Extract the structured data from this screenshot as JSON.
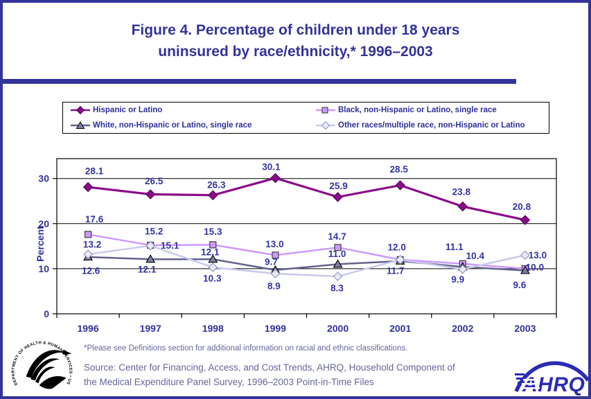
{
  "slide": {
    "title_line1": "Figure 4. Percentage of children under 18 years",
    "title_line2": "uninsured by race/ethnicity,* 1996–2003",
    "accent_color": "#333399"
  },
  "chart_data": {
    "type": "line",
    "title": "Percentage of children under 18 years uninsured by race/ethnicity, 1996-2003",
    "xlabel": "",
    "ylabel": "Percent",
    "categories": [
      "1996",
      "1997",
      "1998",
      "1999",
      "2000",
      "2001",
      "2002",
      "2003"
    ],
    "yticks": [
      0,
      10,
      20,
      30
    ],
    "ylim": [
      0,
      34.4
    ],
    "grid": true,
    "legend_position": "top",
    "series": [
      {
        "name": "Hispanic or Latino",
        "marker": "diamond",
        "line_color": "#8A0C8A",
        "marker_fill": "#8A0C8A",
        "marker_stroke": "#550755",
        "line_width": 3.2,
        "values": [
          28.1,
          26.5,
          26.3,
          30.1,
          25.9,
          28.5,
          23.8,
          20.8
        ],
        "labels": [
          "28.1",
          "26.5",
          "26.3",
          "30.1",
          "25.9",
          "28.5",
          "23.8",
          "20.8"
        ],
        "label_offsets": [
          [
            9,
            -23
          ],
          [
            5,
            -19
          ],
          [
            5,
            -15
          ],
          [
            -6,
            -16
          ],
          [
            1,
            -16
          ],
          [
            -2,
            -23
          ],
          [
            -2,
            -21
          ],
          [
            -5,
            -19
          ]
        ]
      },
      {
        "name": "Black, non-Hispanic or Latino, single race",
        "marker": "square",
        "line_color": "#CC99FF",
        "marker_fill": "#CC99FF",
        "marker_stroke": "#333333",
        "line_width": 2.5,
        "values": [
          17.6,
          15.2,
          15.3,
          13.0,
          14.7,
          12.0,
          11.1,
          10.0
        ],
        "labels": [
          "17.6",
          "15.2",
          "15.3",
          "13.0",
          "14.7",
          "12.0",
          "11.1",
          "10.0"
        ],
        "label_offsets": [
          [
            9,
            -22
          ],
          [
            5,
            -20
          ],
          [
            0,
            -19
          ],
          [
            -1,
            -16
          ],
          [
            -1,
            -16
          ],
          [
            -5,
            -18
          ],
          [
            -12,
            -24
          ],
          [
            14,
            -2
          ]
        ]
      },
      {
        "name": "White, non-Hispanic or Latino, single race",
        "marker": "triangle",
        "line_color": "#62628C",
        "marker_fill": "#7D7DA3",
        "marker_stroke": "#000000",
        "line_width": 2.5,
        "values": [
          12.6,
          12.1,
          12.1,
          9.7,
          11.0,
          11.7,
          10.4,
          9.6
        ],
        "labels": [
          "12.6",
          "12.1",
          "12.1",
          "9.7",
          "11.0",
          "11.7",
          "10.4",
          "9.6"
        ],
        "label_offsets": [
          [
            4,
            20
          ],
          [
            -5,
            15
          ],
          [
            -4,
            -10
          ],
          [
            -6,
            -12
          ],
          [
            -1,
            -15
          ],
          [
            -7,
            14
          ],
          [
            18,
            -16
          ],
          [
            -8,
            21
          ]
        ]
      },
      {
        "name": "Other races/multiple race, non-Hispanic or Latino",
        "marker": "open-diamond",
        "line_color": "#C9C9EC",
        "marker_fill": "#EAEAF8",
        "marker_stroke": "#9191C4",
        "line_width": 2.5,
        "values": [
          13.2,
          15.1,
          10.3,
          8.9,
          8.3,
          12.0,
          9.9,
          13.0
        ],
        "labels": [
          "13.2",
          "15.1",
          "10.3",
          "8.9",
          "8.3",
          "",
          "9.9",
          "13.0"
        ],
        "label_offsets": [
          [
            6,
            -14
          ],
          [
            28,
            0
          ],
          [
            -1,
            16
          ],
          [
            -2,
            18
          ],
          [
            -1,
            17
          ],
          [
            0,
            0
          ],
          [
            -7,
            15
          ],
          [
            18,
            0
          ]
        ]
      }
    ],
    "text_color": "#31319C"
  },
  "footnotes": {
    "definitions": "*Please see Definitions section for additional information on racial and ethnic classifications.",
    "source_line1": "Source: Center for Financing, Access, and Cost Trends, AHRQ, Household Component of",
    "source_line2": "the Medical Expenditure Panel Survey, 1996–2003 Point-in-Time Files"
  },
  "logos": {
    "hhs_seal_text": "DEPARTMENT OF HEALTH & HUMAN SERVICES • USA",
    "ahrq_text": "AHRQ"
  }
}
